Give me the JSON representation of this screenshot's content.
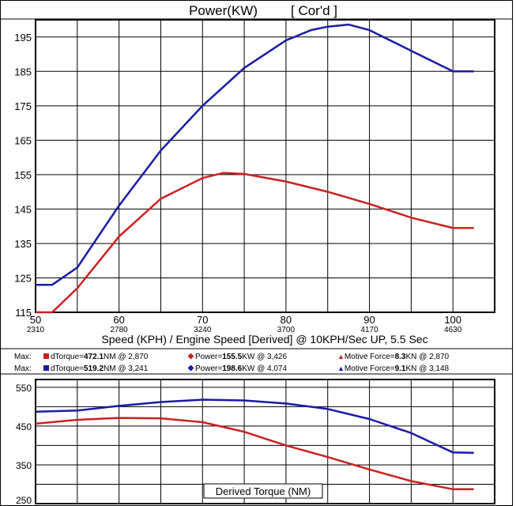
{
  "chart_data": [
    {
      "type": "line",
      "title": "Power(KW)",
      "title_tag": "[ Cor'd ]",
      "xlabel": "Speed (KPH) / Engine Speed [Derived] @ 10KPH/Sec UP, 5.5 Sec",
      "x_ticks": [
        50,
        60,
        70,
        80,
        90,
        100
      ],
      "x_ticks_rpm": [
        "2310",
        "2780",
        "3240",
        "3700",
        "4170",
        "4630"
      ],
      "xlim": [
        50,
        105
      ],
      "y_ticks": [
        115,
        125,
        135,
        145,
        155,
        165,
        175,
        185,
        195
      ],
      "ylim": [
        115,
        200
      ],
      "grid": true,
      "series": [
        {
          "color": "#1a1aa6",
          "x": [
            50,
            52,
            55,
            60,
            65,
            70,
            75,
            80,
            83,
            85,
            87.5,
            90,
            95,
            100,
            102.5
          ],
          "values": [
            123,
            123,
            128,
            146,
            162,
            175,
            186,
            194,
            197,
            198,
            198.6,
            197,
            191,
            185,
            185
          ]
        },
        {
          "color": "#cc2020",
          "x": [
            50,
            52,
            55,
            60,
            65,
            70,
            72.5,
            75,
            80,
            85,
            90,
            95,
            100,
            102.5
          ],
          "values": [
            115,
            115,
            122,
            137,
            148,
            154,
            155.5,
            155.2,
            153,
            150,
            146.5,
            142.5,
            139.5,
            139.5
          ]
        }
      ]
    },
    {
      "type": "line",
      "xlabel": "Derived Torque (NM)",
      "xlim": [
        50,
        105
      ],
      "y_ticks": [
        250,
        350,
        450,
        550
      ],
      "y_tick_lines": [
        250,
        300,
        350,
        400,
        450,
        500,
        550
      ],
      "ylim": [
        250,
        570
      ],
      "grid": true,
      "series": [
        {
          "color": "#1a1aa6",
          "x": [
            50,
            55,
            60,
            65,
            70,
            75,
            80,
            85,
            90,
            95,
            100,
            102.5
          ],
          "values": [
            487,
            490,
            502,
            512,
            518,
            516,
            508,
            494,
            468,
            432,
            382,
            381
          ]
        },
        {
          "color": "#cc2020",
          "x": [
            50,
            55,
            60,
            65,
            70,
            75,
            80,
            85,
            90,
            95,
            100,
            102.5
          ],
          "values": [
            456,
            466,
            471,
            470,
            460,
            435,
            400,
            370,
            338,
            308,
            287,
            287
          ]
        }
      ]
    }
  ],
  "summary": {
    "rows": [
      {
        "label": "Max:",
        "color": "#cc2020",
        "torque_prefix": "dTorque=",
        "torque_value": "472.1",
        "torque_suffix": "NM @ 2,870",
        "power_prefix": "Power=",
        "power_value": "155.5",
        "power_suffix": "KW @ 3,426",
        "force_prefix": "Motive Force=",
        "force_value": "8.3",
        "force_suffix": "KN @ 2,870"
      },
      {
        "label": "Max:",
        "color": "#1a1aa6",
        "torque_prefix": "dTorque=",
        "torque_value": "519.2",
        "torque_suffix": "NM @ 3,241",
        "power_prefix": "Power=",
        "power_value": "198.6",
        "power_suffix": "KW @ 4,074",
        "force_prefix": "Motive Force=",
        "force_value": "9.1",
        "force_suffix": "KN @ 3,148"
      }
    ]
  }
}
